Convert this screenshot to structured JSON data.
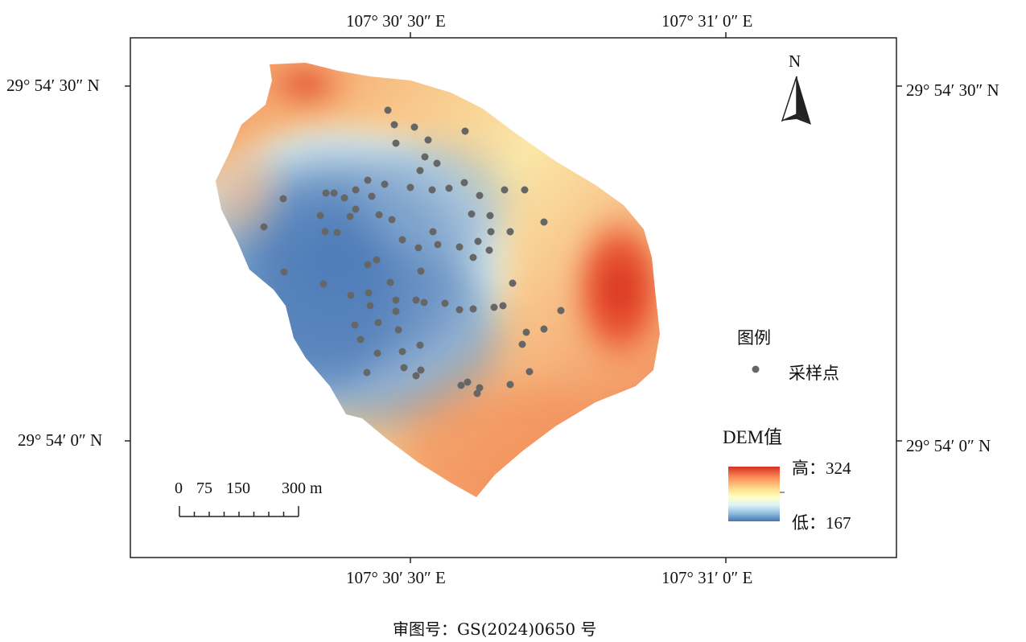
{
  "lon_labels": {
    "top_left": "107° 30′ 30″ E",
    "top_right": "107° 31′ 0″ E",
    "bottom_left": "107° 30′ 30″ E",
    "bottom_right": "107° 31′ 0″ E"
  },
  "lat_labels": {
    "left_top": "29° 54′ 30″ N",
    "left_bottom": "29° 54′ 0″ N",
    "right_top": "29° 54′ 30″ N",
    "right_bottom": "29° 54′ 0″ N"
  },
  "north_arrow": {
    "label": "N",
    "icon": "north-arrow-icon"
  },
  "legend": {
    "title": "图例",
    "sample_label": "采样点",
    "dem_title": "DEM值",
    "high_label": "高：324",
    "low_label": "低：167",
    "high_value": 324,
    "low_value": 167,
    "colors": [
      "#d7301f",
      "#fc8d59",
      "#fee090",
      "#ffffbf",
      "#e0f3f8",
      "#91bfdb",
      "#4575b4"
    ]
  },
  "scale_bar": {
    "labels": [
      "0",
      "75",
      "150",
      "300 m"
    ]
  },
  "approval_number": "审图号：GS(2024)0650 号",
  "sample_point_color": "#666666"
}
